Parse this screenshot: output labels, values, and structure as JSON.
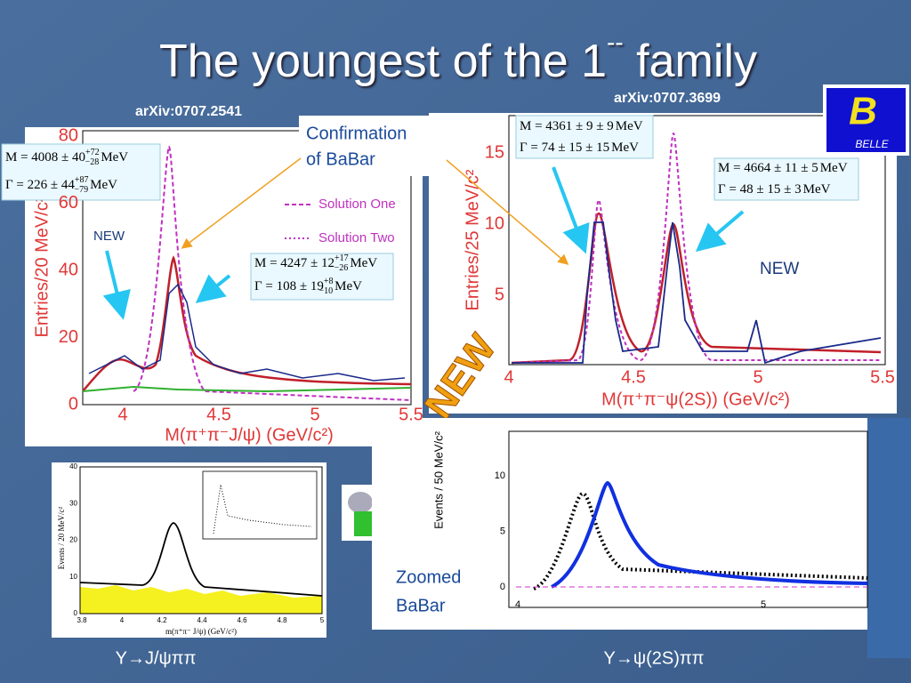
{
  "title": {
    "main": "The youngest of the 1",
    "sup": "--",
    "end": " family"
  },
  "refs": [
    "arXiv:0707.2541",
    "arXiv:0707.3699"
  ],
  "confirmation": [
    "Confirmation",
    "of BaBar"
  ],
  "stamp": "NEW",
  "belle": {
    "letter": "B",
    "name": "BELLE"
  },
  "panel_babar": {
    "ylabel": "Entries/20 MeV/c²",
    "xlabel": "M(π⁺π⁻J/ψ) (GeV/c²)",
    "yticks": [
      "0",
      "20",
      "40",
      "60",
      "80"
    ],
    "xticks": [
      "4",
      "4.5",
      "5",
      "5.5"
    ],
    "legend": [
      "Solution One",
      "Solution Two"
    ],
    "new": "NEW",
    "boxes": [
      [
        {
          "base": "M = 4008 ± 40",
          "sup": "+72",
          "sub": "−28",
          "unit": "MeV"
        },
        {
          "base": "Γ = 226 ± 44",
          "sup": "+87",
          "sub": "−79",
          "unit": "MeV"
        }
      ],
      [
        {
          "base": "M = 4247 ± 12",
          "sup": "+17",
          "sub": "−26",
          "unit": "MeV"
        },
        {
          "base": "Γ = 108 ± 19",
          "sup": "+8",
          "sub": "−10",
          "unit": "MeV"
        }
      ]
    ]
  },
  "panel_belle": {
    "ylabel": "Entries/25 MeV/c²",
    "xlabel": "M(π⁺π⁻ψ(2S)) (GeV/c²)",
    "yticks": [
      "5",
      "10",
      "15"
    ],
    "xticks": [
      "4",
      "4.5",
      "5",
      "5.5"
    ],
    "new": "NEW",
    "boxes": [
      [
        {
          "base": "M = 4361 ± 9 ± 9",
          "sup": "",
          "sub": "",
          "unit": "MeV"
        },
        {
          "base": "Γ = 74 ± 15 ± 15",
          "sup": "",
          "sub": "",
          "unit": "MeV"
        }
      ],
      [
        {
          "base": "M = 4664 ± 11 ± 5",
          "sup": "",
          "sub": "",
          "unit": "MeV"
        },
        {
          "base": "Γ = 48 ± 15 ± 3",
          "sup": "",
          "sub": "",
          "unit": "MeV"
        }
      ]
    ]
  },
  "panel_small": {
    "ylabel": "Events / 20 MeV/c²",
    "xlabel": "m(π⁺π⁻ J/ψ) (GeV/c²)",
    "yticks": [
      "0",
      "10",
      "20",
      "30",
      "40"
    ],
    "xticks": [
      "3.8",
      "4",
      "4.2",
      "4.4",
      "4.6",
      "4.8",
      "5"
    ]
  },
  "panel_zoom": {
    "ylabel": "Events / 50 MeV/c²",
    "label": [
      "Zoomed",
      "BaBar"
    ],
    "yticks": [
      "0",
      "5",
      "10"
    ],
    "xticks": [
      "4",
      "5"
    ]
  },
  "captions": [
    "Y→J/ψππ",
    "Y→ψ(2S)ππ"
  ]
}
